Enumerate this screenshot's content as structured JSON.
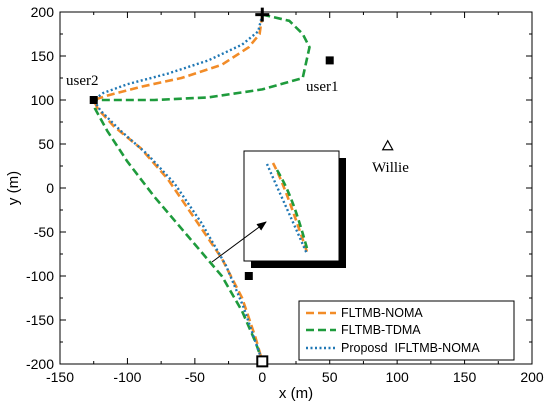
{
  "chart_data": {
    "type": "line",
    "title": "",
    "xlabel": "x (m)",
    "ylabel": "y (m)",
    "xlim": [
      -150,
      200
    ],
    "ylim": [
      -200,
      200
    ],
    "xticks": [
      -150,
      -100,
      -50,
      0,
      50,
      100,
      150,
      200
    ],
    "yticks": [
      -200,
      -150,
      -100,
      -50,
      0,
      50,
      100,
      150,
      200
    ],
    "x_tick_labels": [
      "-150",
      "-100",
      "-50",
      "0",
      "50",
      "100",
      "150",
      "200"
    ],
    "y_tick_labels": [
      "-200",
      "-150",
      "-100",
      "-50",
      "0",
      "50",
      "100",
      "150",
      "200"
    ],
    "grid": false,
    "legend_position": "bottom-right",
    "series": [
      {
        "name": "FLTMB-NOMA",
        "color": "#f28c28",
        "dash": "dashed",
        "x": [
          0,
          -2,
          -10,
          -30,
          -60,
          -90,
          -115,
          -125,
          -122,
          -110,
          -90,
          -70,
          -50,
          -30,
          -15,
          -5,
          0
        ],
        "y": [
          197,
          175,
          160,
          140,
          125,
          115,
          105,
          100,
          90,
          70,
          45,
          10,
          -35,
          -80,
          -125,
          -170,
          -197
        ]
      },
      {
        "name": "FLTMB-TDMA",
        "color": "#1e9b3c",
        "dash": "dashed",
        "x": [
          0,
          20,
          30,
          35,
          30,
          0,
          -40,
          -80,
          -110,
          -125,
          -124,
          -115,
          -100,
          -80,
          -55,
          -30,
          -15,
          -5,
          0
        ],
        "y": [
          197,
          190,
          175,
          160,
          125,
          112,
          103,
          100,
          100,
          100,
          90,
          65,
          30,
          -10,
          -55,
          -100,
          -140,
          -175,
          -197
        ]
      },
      {
        "name": "Proposd  IFLTMB-NOMA",
        "color": "#1f77b4",
        "dash": "dotted",
        "x": [
          0,
          -3,
          -15,
          -40,
          -70,
          -100,
          -118,
          -125,
          -120,
          -105,
          -85,
          -65,
          -45,
          -27,
          -14,
          -5,
          0
        ],
        "y": [
          197,
          178,
          163,
          145,
          130,
          118,
          108,
          100,
          88,
          65,
          38,
          5,
          -40,
          -88,
          -135,
          -175,
          -197
        ]
      }
    ],
    "markers": [
      {
        "name": "start",
        "symbol": "plus",
        "x": 0,
        "y": 197
      },
      {
        "name": "user1",
        "symbol": "square",
        "x": 50,
        "y": 145
      },
      {
        "name": "user2",
        "symbol": "square",
        "x": -125,
        "y": 100
      },
      {
        "name": "jammer",
        "symbol": "square",
        "x": -10,
        "y": -100
      },
      {
        "name": "Willie",
        "symbol": "triangle",
        "x": 93,
        "y": 48
      },
      {
        "name": "end",
        "symbol": "hollow-square",
        "x": 0,
        "y": -197
      }
    ],
    "annotations": {
      "user1": "user1",
      "user2": "user2",
      "willie": "Willie"
    }
  }
}
